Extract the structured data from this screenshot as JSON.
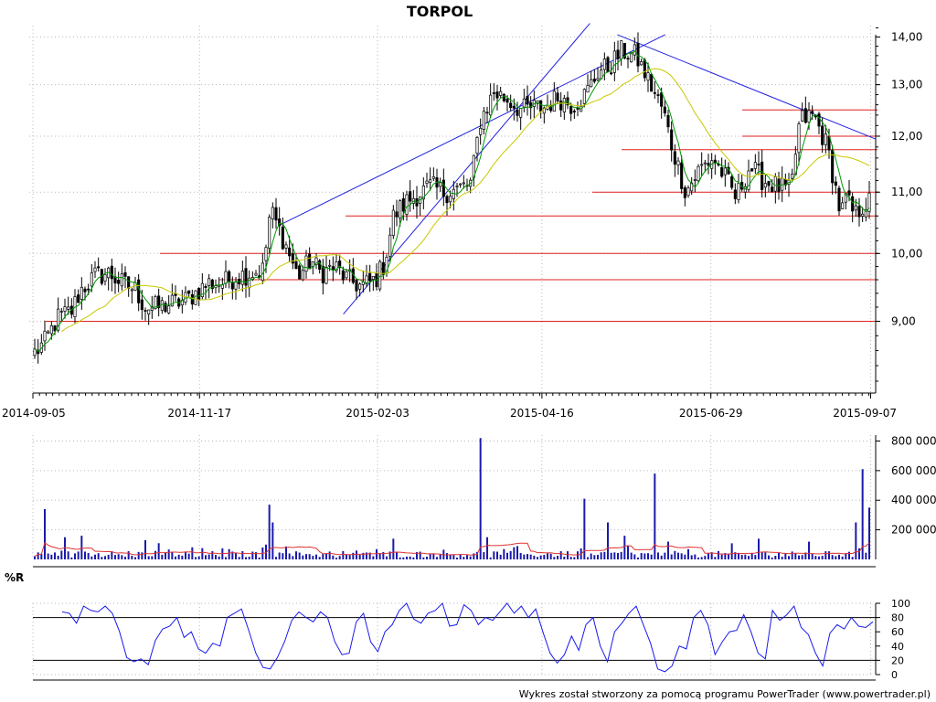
{
  "chart_data": [
    {
      "type": "candlestick",
      "title": "TORPOL",
      "x_tick_labels": [
        "2014-09-05",
        "2014-11-17",
        "2015-02-03",
        "2015-04-16",
        "2015-06-29",
        "2015-09-07"
      ],
      "y_tick_labels": [
        "9,00",
        "10,00",
        "11,00",
        "12,00",
        "13,00",
        "14,00"
      ],
      "y_tick_values": [
        9,
        10,
        11,
        12,
        13,
        14
      ],
      "ylim": [
        8.05,
        14.25
      ],
      "scale": "log",
      "grid": true,
      "close_points": [
        [
          "2014-09-05",
          8.55
        ],
        [
          "2014-09-10",
          8.7
        ],
        [
          "2014-09-16",
          9.05
        ],
        [
          "2014-09-22",
          9.15
        ],
        [
          "2014-09-26",
          9.45
        ],
        [
          "2014-10-02",
          9.65
        ],
        [
          "2014-10-08",
          9.7
        ],
        [
          "2014-10-14",
          9.55
        ],
        [
          "2014-10-20",
          9.45
        ],
        [
          "2014-10-24",
          9.2
        ],
        [
          "2014-10-30",
          9.2
        ],
        [
          "2014-11-05",
          9.25
        ],
        [
          "2014-11-11",
          9.3
        ],
        [
          "2014-11-17",
          9.45
        ],
        [
          "2014-11-21",
          9.55
        ],
        [
          "2014-11-27",
          9.55
        ],
        [
          "2014-12-03",
          9.65
        ],
        [
          "2014-12-09",
          9.7
        ],
        [
          "2014-12-15",
          9.75
        ],
        [
          "2014-12-18",
          10.7
        ],
        [
          "2014-12-24",
          10.2
        ],
        [
          "2014-12-30",
          9.65
        ],
        [
          "2015-01-05",
          9.9
        ],
        [
          "2015-01-09",
          9.7
        ],
        [
          "2015-01-15",
          9.8
        ],
        [
          "2015-01-21",
          9.6
        ],
        [
          "2015-01-27",
          9.5
        ],
        [
          "2015-02-02",
          9.6
        ],
        [
          "2015-02-06",
          9.85
        ],
        [
          "2015-02-10",
          10.6
        ],
        [
          "2015-02-16",
          10.85
        ],
        [
          "2015-02-20",
          10.95
        ],
        [
          "2015-02-26",
          11.1
        ],
        [
          "2015-03-04",
          11.0
        ],
        [
          "2015-03-10",
          11.05
        ],
        [
          "2015-03-16",
          11.15
        ],
        [
          "2015-03-20",
          12.3
        ],
        [
          "2015-03-26",
          12.85
        ],
        [
          "2015-04-01",
          12.7
        ],
        [
          "2015-04-07",
          12.5
        ],
        [
          "2015-04-13",
          12.55
        ],
        [
          "2015-04-17",
          12.55
        ],
        [
          "2015-04-23",
          12.75
        ],
        [
          "2015-04-29",
          12.6
        ],
        [
          "2015-05-05",
          12.8
        ],
        [
          "2015-05-11",
          13.3
        ],
        [
          "2015-05-15",
          13.35
        ],
        [
          "2015-05-21",
          13.7
        ],
        [
          "2015-05-27",
          13.6
        ],
        [
          "2015-06-02",
          13.05
        ],
        [
          "2015-06-08",
          12.5
        ],
        [
          "2015-06-12",
          11.8
        ],
        [
          "2015-06-18",
          11.0
        ],
        [
          "2015-06-24",
          11.4
        ],
        [
          "2015-06-30",
          11.6
        ],
        [
          "2015-07-06",
          11.2
        ],
        [
          "2015-07-10",
          10.9
        ],
        [
          "2015-07-16",
          11.45
        ],
        [
          "2015-07-22",
          11.2
        ],
        [
          "2015-07-28",
          11.1
        ],
        [
          "2015-08-03",
          11.0
        ],
        [
          "2015-08-07",
          12.3
        ],
        [
          "2015-08-13",
          12.4
        ],
        [
          "2015-08-19",
          11.8
        ],
        [
          "2015-08-25",
          10.6
        ],
        [
          "2015-08-27",
          10.9
        ],
        [
          "2015-08-31",
          10.6
        ],
        [
          "2015-09-04",
          10.8
        ],
        [
          "2015-09-08",
          10.85
        ]
      ],
      "indicators": [
        {
          "name": "",
          "color": "#009900"
        },
        {
          "name": "",
          "color": "#c8c800"
        }
      ],
      "support_resistance": [
        9.0,
        9.6,
        10.0,
        10.6,
        11.0,
        11.75,
        12.0,
        12.5
      ],
      "trend_lines": [
        {
          "from": [
            "2015-01-19",
            9.1
          ],
          "to": [
            "2015-05-07",
            14.3
          ]
        },
        {
          "from": [
            "2014-12-22",
            10.45
          ],
          "to": [
            "2015-06-09",
            14.05
          ]
        },
        {
          "from": [
            "2015-05-19",
            14.05
          ],
          "to": [
            "2015-09-09",
            11.95
          ]
        }
      ]
    },
    {
      "type": "bar",
      "y_tick_labels": [
        "200 000",
        "400 000",
        "600 000",
        "800 000"
      ],
      "y_tick_values": [
        200000,
        400000,
        600000,
        800000
      ],
      "ylim": [
        0,
        840000
      ],
      "spikes": [
        [
          "2014-09-10",
          340000
        ],
        [
          "2014-09-19",
          150000
        ],
        [
          "2014-09-26",
          160000
        ],
        [
          "2014-10-24",
          130000
        ],
        [
          "2014-12-16",
          100000
        ],
        [
          "2014-12-18",
          370000
        ],
        [
          "2014-12-19",
          250000
        ],
        [
          "2015-02-10",
          140000
        ],
        [
          "2015-03-20",
          820000
        ],
        [
          "2015-03-23",
          150000
        ],
        [
          "2015-05-04",
          410000
        ],
        [
          "2015-05-15",
          250000
        ],
        [
          "2015-05-22",
          160000
        ],
        [
          "2015-06-05",
          580000
        ],
        [
          "2015-06-11",
          120000
        ],
        [
          "2015-07-20",
          140000
        ],
        [
          "2015-08-11",
          120000
        ],
        [
          "2015-08-31",
          250000
        ],
        [
          "2015-09-03",
          610000
        ],
        [
          "2015-09-07",
          350000
        ]
      ],
      "moving_average_color": "#dd3333",
      "bar_color": "#1a1aaa"
    },
    {
      "type": "line",
      "label": "%R",
      "y_tick_labels": [
        "0",
        "20",
        "40",
        "60",
        "80",
        "100"
      ],
      "y_tick_values": [
        0,
        20,
        40,
        60,
        80,
        100
      ],
      "ylim": [
        0,
        100
      ],
      "reference_levels": [
        20,
        80
      ],
      "values": [
        88,
        86,
        72,
        96,
        90,
        88,
        96,
        86,
        60,
        24,
        18,
        22,
        14,
        48,
        64,
        68,
        80,
        52,
        60,
        36,
        30,
        44,
        40,
        80,
        86,
        92,
        62,
        30,
        10,
        8,
        24,
        46,
        76,
        88,
        80,
        74,
        88,
        80,
        46,
        28,
        30,
        74,
        86,
        46,
        32,
        60,
        70,
        90,
        100,
        78,
        72,
        86,
        90,
        100,
        68,
        70,
        98,
        90,
        70,
        80,
        76,
        88,
        100,
        86,
        96,
        80,
        92,
        60,
        30,
        16,
        28,
        54,
        34,
        70,
        80,
        40,
        18,
        60,
        72,
        86,
        96,
        70,
        44,
        8,
        4,
        12,
        40,
        36,
        80,
        90,
        70,
        28,
        46,
        60,
        62,
        84,
        60,
        30,
        22,
        90,
        76,
        84,
        96,
        66,
        56,
        30,
        12,
        58,
        70,
        64,
        80,
        68,
        66,
        74
      ],
      "color": "#1a1aee"
    }
  ],
  "footer": {
    "credit": "Wykres został stworzony za pomocą programu PowerTrader (www.powertrader.pl)"
  }
}
